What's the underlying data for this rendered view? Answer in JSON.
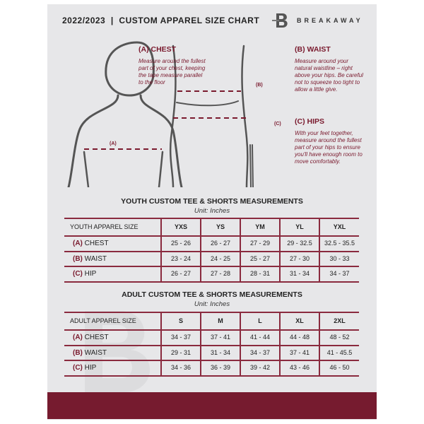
{
  "header": {
    "title": "2022/2023  |  CUSTOM APPAREL SIZE CHART",
    "brand": "BREAKAWAY",
    "logo_letter": "B"
  },
  "guide": {
    "chest": {
      "label": "(A) CHEST",
      "marker": "(A)",
      "text": "Measure around the fullest part of your chest, keeping the tape measure parallel to the floor"
    },
    "waist": {
      "label": "(B) WAIST",
      "marker": "(B)",
      "text": "Measure around your natural waistline – right above your hips. Be careful not to squeeze too tight to allow a little give."
    },
    "hips": {
      "label": "(C) HIPS",
      "marker": "(C)",
      "text": "With your feet together, measure around the fullest part of your hips to ensure you'll have enough room to move comfortably."
    }
  },
  "youth": {
    "title": "YOUTH CUSTOM TEE & SHORTS MEASUREMENTS",
    "unit": "Unit: Inches",
    "header": "YOUTH APPAREL SIZE",
    "sizes": [
      "YXS",
      "YS",
      "YM",
      "YL",
      "YXL"
    ],
    "rows": [
      {
        "letter": "(A)",
        "name": "CHEST",
        "values": [
          "25 - 26",
          "26 - 27",
          "27 - 29",
          "29 - 32.5",
          "32.5 - 35.5"
        ]
      },
      {
        "letter": "(B)",
        "name": "WAIST",
        "values": [
          "23 - 24",
          "24 - 25",
          "25 - 27",
          "27 - 30",
          "30 - 33"
        ]
      },
      {
        "letter": "(C)",
        "name": "HIP",
        "values": [
          "26 - 27",
          "27 - 28",
          "28 - 31",
          "31 - 34",
          "34 - 37"
        ]
      }
    ]
  },
  "adult": {
    "title": "ADULT CUSTOM TEE & SHORTS MEASUREMENTS",
    "unit": "Unit: Inches",
    "header": "ADULT APPAREL SIZE",
    "sizes": [
      "S",
      "M",
      "L",
      "XL",
      "2XL"
    ],
    "rows": [
      {
        "letter": "(A)",
        "name": "CHEST",
        "values": [
          "34 - 37",
          "37 - 41",
          "41 - 44",
          "44 - 48",
          "48 - 52"
        ]
      },
      {
        "letter": "(B)",
        "name": "WAIST",
        "values": [
          "29 - 31",
          "31 - 34",
          "34 - 37",
          "37 - 41",
          "41 - 45.5"
        ]
      },
      {
        "letter": "(C)",
        "name": "HIP",
        "values": [
          "34 - 36",
          "36 - 39",
          "39 - 42",
          "43 - 46",
          "46 - 50"
        ]
      }
    ]
  },
  "colors": {
    "accent": "#7a1a2e",
    "panel": "#e7e7e9"
  }
}
